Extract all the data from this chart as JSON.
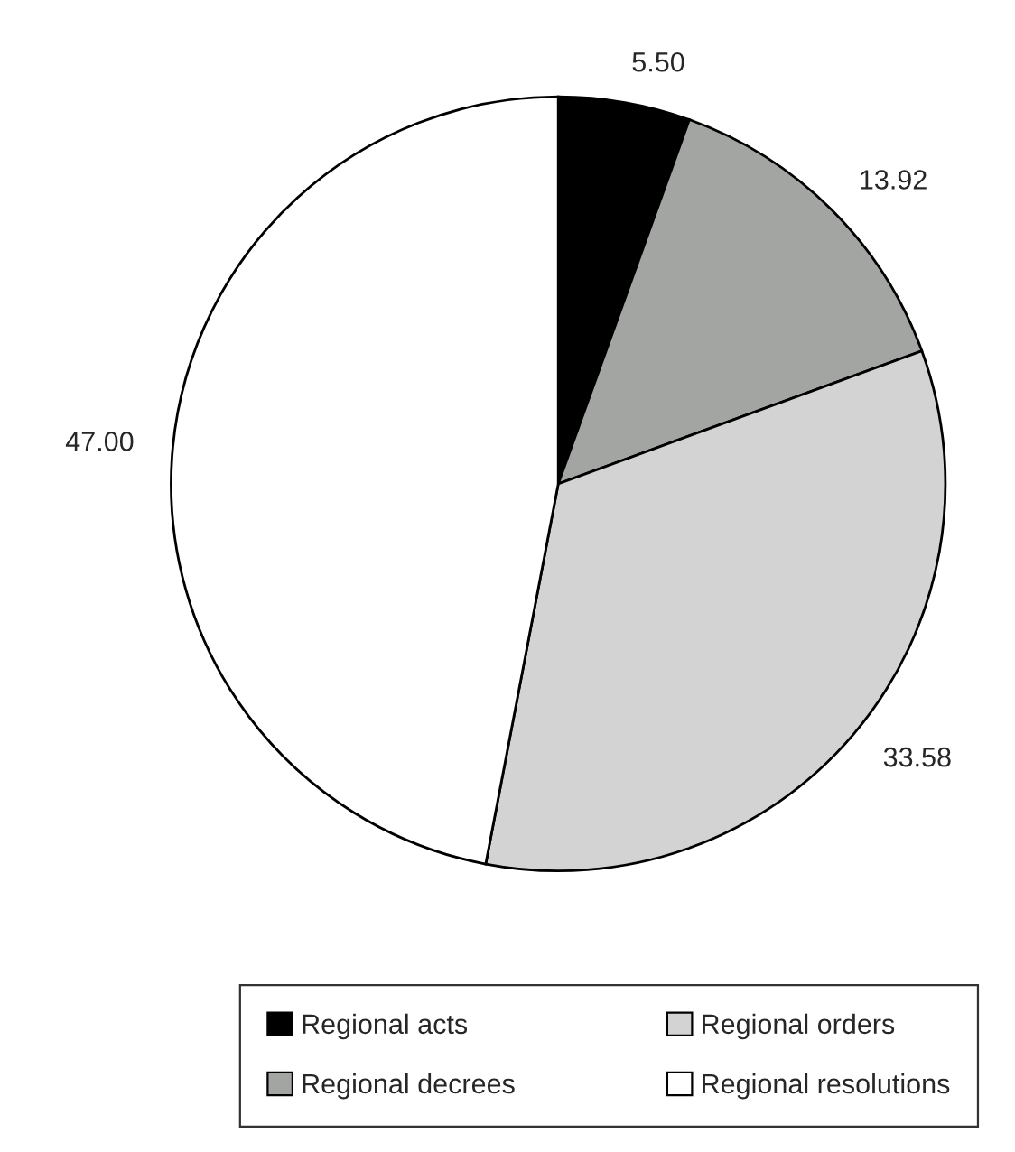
{
  "chart_data": {
    "type": "pie",
    "categories": [
      "Regional acts",
      "Regional decrees",
      "Regional orders",
      "Regional resolutions"
    ],
    "values": [
      5.5,
      13.92,
      33.58,
      47.0
    ],
    "colors": [
      "#000000",
      "#a3a5a3",
      "#d3d3d3",
      "#ffffff"
    ],
    "value_labels": [
      "5.50",
      "13.92",
      "33.58",
      "47.00"
    ],
    "legend": "bottom"
  }
}
